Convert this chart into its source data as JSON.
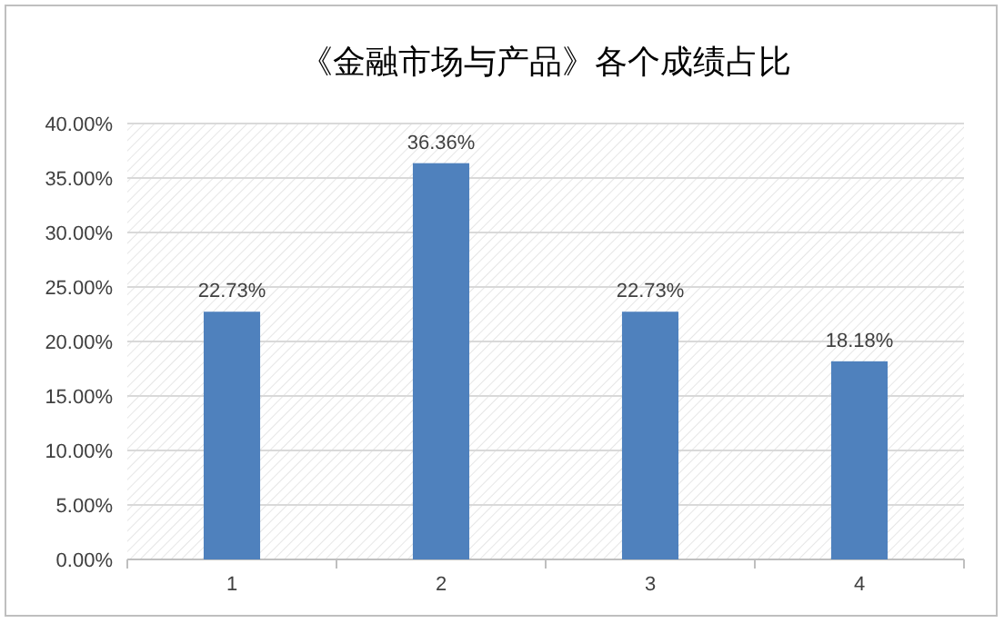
{
  "chart_data": {
    "type": "bar",
    "title": "《金融市场与产品》各个成绩占比",
    "categories": [
      "1",
      "2",
      "3",
      "4"
    ],
    "values": [
      22.73,
      36.36,
      22.73,
      18.18
    ],
    "value_labels": [
      "22.73%",
      "36.36%",
      "22.73%",
      "18.18%"
    ],
    "color": "#4f81bd",
    "ylim": [
      0,
      40
    ],
    "yticks": [
      {
        "value": 0,
        "label": "0.00%"
      },
      {
        "value": 5,
        "label": "5.00%"
      },
      {
        "value": 10,
        "label": "10.00%"
      },
      {
        "value": 15,
        "label": "15.00%"
      },
      {
        "value": 20,
        "label": "20.00%"
      },
      {
        "value": 25,
        "label": "25.00%"
      },
      {
        "value": 30,
        "label": "30.00%"
      },
      {
        "value": 35,
        "label": "35.00%"
      },
      {
        "value": 40,
        "label": "40.00%"
      }
    ],
    "grid": "y"
  }
}
